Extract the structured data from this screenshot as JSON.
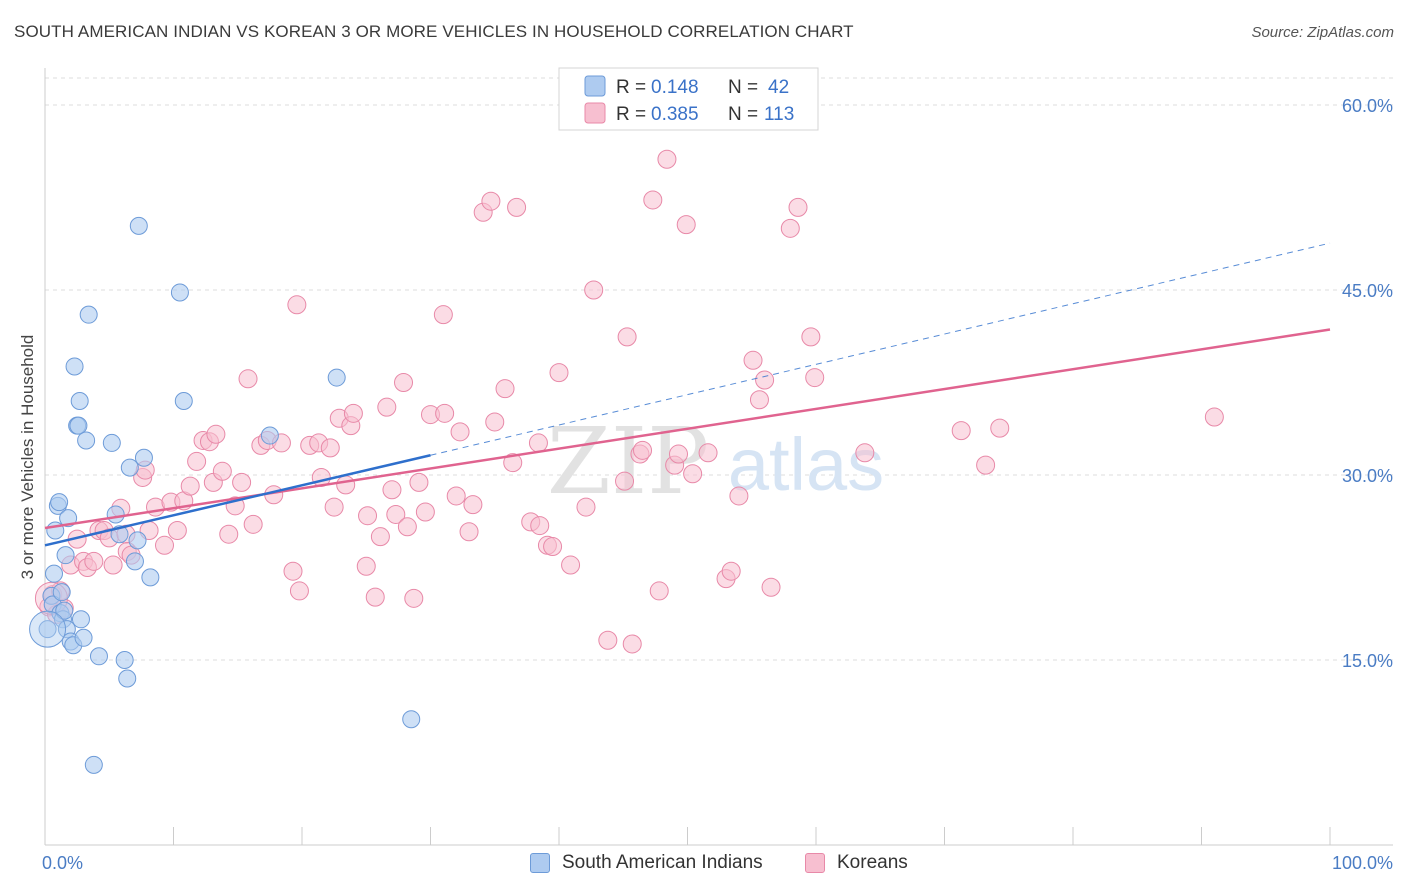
{
  "header": {
    "title": "SOUTH AMERICAN INDIAN VS KOREAN 3 OR MORE VEHICLES IN HOUSEHOLD CORRELATION CHART",
    "source": "Source: ZipAtlas.com"
  },
  "watermark": {
    "zip": "ZIP",
    "atlas": "atlas"
  },
  "legend": {
    "rows": [
      {
        "r_label": "R =",
        "r_value": "0.148",
        "n_label": "N =",
        "n_value": "42"
      },
      {
        "r_label": "R =",
        "r_value": "0.385",
        "n_label": "N =",
        "n_value": "113"
      }
    ]
  },
  "colors": {
    "blue_fill": "#aecbf0",
    "blue_stroke": "#6d9bd8",
    "blue_line": "#2e6fcc",
    "pink_fill": "#f7bfd0",
    "pink_stroke": "#e889a8",
    "pink_line": "#e0638f",
    "axis_label": "#4a7cc4",
    "grid": "#dddddd"
  },
  "chart_data": {
    "type": "scatter",
    "title": "SOUTH AMERICAN INDIAN VS KOREAN 3 OR MORE VEHICLES IN HOUSEHOLD CORRELATION CHART",
    "xlabel": "",
    "ylabel": "3 or more Vehicles in Household",
    "xlim": [
      0,
      100
    ],
    "ylim": [
      0,
      63
    ],
    "x_tick_labels": [
      "0.0%",
      "100.0%"
    ],
    "y_ticks": [
      15,
      30,
      45,
      60
    ],
    "y_tick_labels": [
      "15.0%",
      "30.0%",
      "45.0%",
      "60.0%"
    ],
    "grid": true,
    "legend_position": "top-center",
    "series": [
      {
        "name": "South American Indians",
        "R": 0.148,
        "N": 42,
        "points": [
          [
            0.2,
            17.5
          ],
          [
            0.5,
            20.2
          ],
          [
            0.6,
            19.5
          ],
          [
            0.7,
            22.0
          ],
          [
            0.8,
            25.5
          ],
          [
            1.0,
            27.5
          ],
          [
            1.1,
            27.8
          ],
          [
            1.2,
            18.8
          ],
          [
            1.3,
            20.5
          ],
          [
            1.4,
            18.3
          ],
          [
            1.5,
            19.0
          ],
          [
            1.6,
            23.5
          ],
          [
            1.7,
            17.5
          ],
          [
            1.8,
            26.5
          ],
          [
            2.0,
            16.5
          ],
          [
            2.2,
            16.2
          ],
          [
            2.3,
            38.8
          ],
          [
            2.5,
            34.0
          ],
          [
            2.6,
            34.0
          ],
          [
            2.7,
            36.0
          ],
          [
            2.8,
            18.3
          ],
          [
            3.0,
            16.8
          ],
          [
            3.2,
            32.8
          ],
          [
            3.4,
            43.0
          ],
          [
            3.8,
            6.5
          ],
          [
            4.2,
            15.3
          ],
          [
            5.2,
            32.6
          ],
          [
            5.5,
            26.8
          ],
          [
            5.8,
            25.2
          ],
          [
            6.2,
            15.0
          ],
          [
            6.4,
            13.5
          ],
          [
            6.6,
            30.6
          ],
          [
            7.0,
            23.0
          ],
          [
            7.2,
            24.7
          ],
          [
            7.3,
            50.2
          ],
          [
            7.7,
            31.4
          ],
          [
            8.2,
            21.7
          ],
          [
            10.5,
            44.8
          ],
          [
            10.8,
            36.0
          ],
          [
            17.5,
            33.2
          ],
          [
            22.7,
            37.9
          ],
          [
            28.5,
            10.2
          ]
        ],
        "trend": {
          "x": [
            0,
            30
          ],
          "y": [
            24.3,
            31.6
          ]
        },
        "trend_extension": {
          "x": [
            30,
            100
          ],
          "y": [
            31.6,
            48.8
          ]
        }
      },
      {
        "name": "Koreans",
        "R": 0.385,
        "N": 113,
        "points": [
          [
            0.3,
            19.3
          ],
          [
            0.6,
            20.3
          ],
          [
            0.9,
            18.7
          ],
          [
            1.2,
            20.6
          ],
          [
            1.5,
            19.2
          ],
          [
            2.0,
            22.7
          ],
          [
            2.5,
            24.8
          ],
          [
            3.0,
            23.0
          ],
          [
            3.3,
            22.5
          ],
          [
            3.8,
            23.0
          ],
          [
            4.2,
            25.5
          ],
          [
            4.6,
            25.5
          ],
          [
            5.0,
            24.9
          ],
          [
            5.3,
            22.7
          ],
          [
            5.9,
            27.3
          ],
          [
            6.3,
            25.2
          ],
          [
            6.4,
            23.8
          ],
          [
            6.7,
            23.5
          ],
          [
            7.6,
            29.8
          ],
          [
            7.8,
            30.4
          ],
          [
            8.1,
            25.5
          ],
          [
            8.6,
            27.4
          ],
          [
            9.3,
            24.3
          ],
          [
            9.8,
            27.8
          ],
          [
            10.3,
            25.5
          ],
          [
            10.8,
            27.9
          ],
          [
            11.3,
            29.1
          ],
          [
            11.8,
            31.1
          ],
          [
            12.3,
            32.8
          ],
          [
            12.8,
            32.7
          ],
          [
            13.1,
            29.4
          ],
          [
            13.3,
            33.3
          ],
          [
            13.8,
            30.3
          ],
          [
            14.3,
            25.2
          ],
          [
            14.8,
            27.5
          ],
          [
            15.3,
            29.4
          ],
          [
            15.8,
            37.8
          ],
          [
            16.2,
            26.0
          ],
          [
            16.8,
            32.4
          ],
          [
            17.3,
            32.8
          ],
          [
            17.8,
            28.4
          ],
          [
            18.4,
            32.6
          ],
          [
            19.3,
            22.2
          ],
          [
            19.6,
            43.8
          ],
          [
            19.8,
            20.6
          ],
          [
            20.6,
            32.4
          ],
          [
            21.3,
            32.6
          ],
          [
            21.5,
            29.8
          ],
          [
            22.2,
            32.2
          ],
          [
            22.5,
            27.4
          ],
          [
            22.9,
            34.6
          ],
          [
            23.4,
            29.2
          ],
          [
            23.8,
            34.0
          ],
          [
            24.0,
            35.0
          ],
          [
            25.0,
            22.6
          ],
          [
            25.1,
            26.7
          ],
          [
            25.7,
            20.1
          ],
          [
            26.1,
            25.0
          ],
          [
            26.6,
            35.5
          ],
          [
            27.0,
            28.8
          ],
          [
            27.3,
            26.8
          ],
          [
            27.9,
            37.5
          ],
          [
            28.2,
            25.8
          ],
          [
            28.7,
            20.0
          ],
          [
            29.1,
            29.4
          ],
          [
            29.6,
            27.0
          ],
          [
            30.0,
            34.9
          ],
          [
            31.0,
            43.0
          ],
          [
            31.1,
            35.0
          ],
          [
            32.0,
            28.3
          ],
          [
            32.3,
            33.5
          ],
          [
            33.0,
            25.4
          ],
          [
            33.3,
            27.6
          ],
          [
            34.1,
            51.3
          ],
          [
            34.7,
            52.2
          ],
          [
            35.0,
            34.3
          ],
          [
            35.8,
            37.0
          ],
          [
            36.4,
            31.0
          ],
          [
            36.7,
            51.7
          ],
          [
            37.8,
            26.2
          ],
          [
            38.4,
            32.6
          ],
          [
            38.5,
            25.9
          ],
          [
            39.1,
            24.3
          ],
          [
            39.5,
            24.2
          ],
          [
            40.0,
            38.3
          ],
          [
            40.9,
            22.7
          ],
          [
            42.1,
            27.4
          ],
          [
            42.7,
            45.0
          ],
          [
            43.8,
            16.6
          ],
          [
            45.1,
            29.5
          ],
          [
            45.3,
            41.2
          ],
          [
            45.7,
            16.3
          ],
          [
            46.3,
            31.7
          ],
          [
            46.5,
            32.0
          ],
          [
            47.3,
            52.3
          ],
          [
            47.8,
            20.6
          ],
          [
            48.4,
            55.6
          ],
          [
            49.0,
            30.8
          ],
          [
            49.3,
            31.7
          ],
          [
            49.9,
            50.3
          ],
          [
            50.4,
            30.1
          ],
          [
            51.6,
            31.8
          ],
          [
            53.0,
            21.6
          ],
          [
            53.4,
            22.2
          ],
          [
            54.0,
            28.3
          ],
          [
            55.1,
            39.3
          ],
          [
            55.6,
            36.1
          ],
          [
            56.0,
            37.7
          ],
          [
            56.5,
            20.9
          ],
          [
            58.0,
            50.0
          ],
          [
            58.6,
            51.7
          ],
          [
            59.6,
            41.2
          ],
          [
            59.9,
            37.9
          ],
          [
            63.8,
            31.8
          ],
          [
            71.3,
            33.6
          ],
          [
            73.2,
            30.8
          ],
          [
            74.3,
            33.8
          ],
          [
            91.0,
            34.7
          ]
        ],
        "trend": {
          "x": [
            0,
            100
          ],
          "y": [
            25.7,
            41.8
          ]
        }
      }
    ]
  }
}
